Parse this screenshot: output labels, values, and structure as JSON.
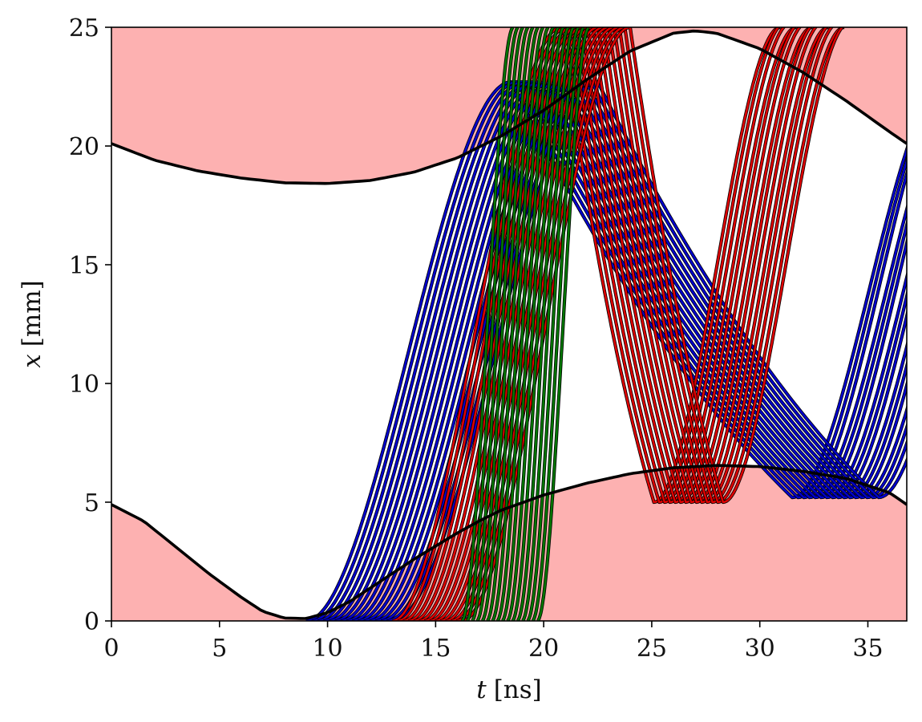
{
  "chart_data": {
    "type": "line",
    "title": "",
    "xlabel_var": "t",
    "xlabel_unit": "[ns]",
    "ylabel_var": "x",
    "ylabel_unit": "[mm]",
    "xlim": [
      0,
      36.8
    ],
    "ylim": [
      0,
      25
    ],
    "xticks": [
      "0",
      "5",
      "10",
      "15",
      "20",
      "25",
      "30",
      "35"
    ],
    "yticks": [
      "0",
      "5",
      "10",
      "15",
      "20",
      "25"
    ],
    "grid": false,
    "legend": "none",
    "forbidden_region_color": "#fdb1b1",
    "boundary_color": "#000000",
    "upper_boundary": {
      "x": [
        0,
        2,
        4,
        6,
        8,
        10,
        12,
        14,
        16,
        18,
        20,
        22,
        24,
        26,
        27,
        28,
        30,
        32,
        34,
        36,
        36.8
      ],
      "y": [
        20.1,
        19.4,
        18.95,
        18.65,
        18.45,
        18.42,
        18.55,
        18.9,
        19.5,
        20.4,
        21.5,
        22.8,
        24.0,
        24.75,
        24.85,
        24.75,
        24.1,
        23.1,
        21.9,
        20.6,
        20.1
      ]
    },
    "lower_boundary": {
      "x": [
        0,
        1.5,
        3,
        4.5,
        6,
        7,
        8,
        9,
        10,
        11,
        12,
        13,
        14,
        15,
        16,
        17,
        18,
        20,
        22,
        24,
        26,
        28,
        30,
        32,
        34,
        36,
        36.8
      ],
      "y": [
        4.9,
        4.2,
        3.1,
        2.0,
        1.0,
        0.4,
        0.12,
        0.1,
        0.35,
        0.8,
        1.4,
        2.0,
        2.6,
        3.15,
        3.7,
        4.2,
        4.65,
        5.3,
        5.8,
        6.2,
        6.45,
        6.55,
        6.5,
        6.3,
        6.0,
        5.4,
        4.9
      ]
    },
    "series": [
      {
        "color": "#0000cc",
        "count": 16,
        "start_t_range": [
          9.0,
          13.0
        ],
        "rise_duration": 9.5,
        "peak_x": 22.7,
        "fall_to": 5.2,
        "fall_duration": 13.0
      },
      {
        "color": "#dd0000",
        "count": 14,
        "start_t_range": [
          13.0,
          16.2
        ],
        "rise_duration": 7.8,
        "peak_x": 25.0,
        "fall_to": 5.0,
        "fall_duration": 4.3
      },
      {
        "color": "#007700",
        "count": 16,
        "start_t_range": [
          16.2,
          19.7
        ],
        "rise_duration": 2.4,
        "peak_x": 25.0,
        "fall_to": null,
        "fall_duration": null
      }
    ]
  }
}
